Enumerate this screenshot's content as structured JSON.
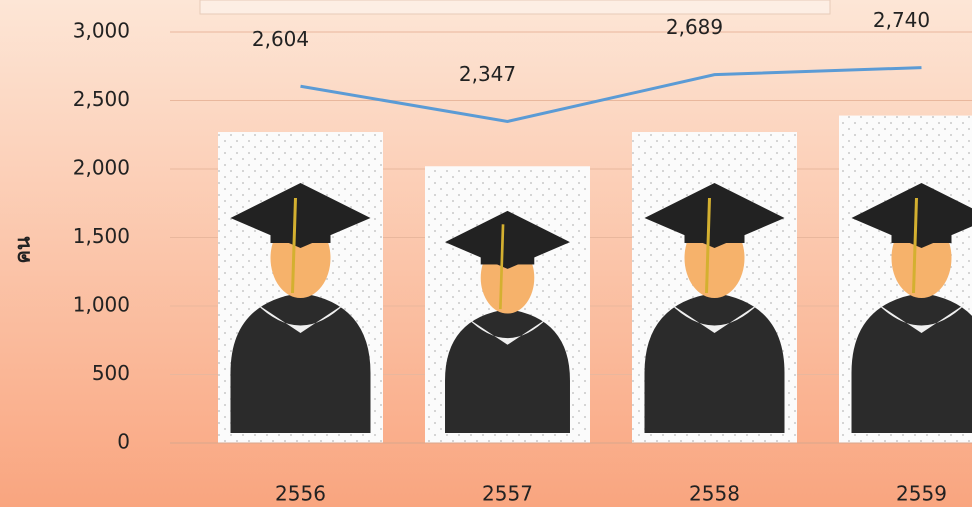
{
  "chart_data": {
    "type": "bar",
    "y_label": "คน",
    "categories": [
      "2556",
      "2557",
      "2558",
      "2559"
    ],
    "series": [
      {
        "type": "bar",
        "values": [
          2270,
          2020,
          2270,
          2390
        ]
      },
      {
        "type": "line",
        "color": "#5b9bd5",
        "values": [
          2604,
          2347,
          2689,
          2740
        ],
        "value_labels": [
          "2,604",
          "2,347",
          "2,689",
          "2,740"
        ]
      }
    ],
    "ylim": [
      0,
      3000
    ],
    "yticks": [
      0,
      500,
      {
        "value": 1000,
        "label": "1,000"
      },
      {
        "value": 1500,
        "label": "1,500"
      },
      {
        "value": 2000,
        "label": "2,000"
      },
      {
        "value": 2500,
        "label": "2,500"
      },
      {
        "value": 3000,
        "label": "3,000"
      }
    ],
    "grid": true
  }
}
